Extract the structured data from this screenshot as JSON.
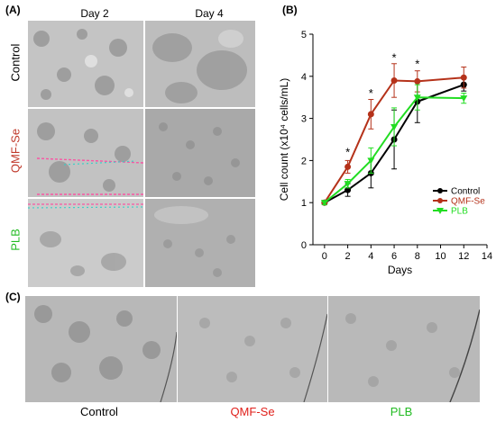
{
  "panels": {
    "A": {
      "label": "(A)",
      "columns": [
        "Day 2",
        "Day 4"
      ],
      "rows": [
        {
          "label": "Control",
          "color": "#000000"
        },
        {
          "label": "QMF-Se",
          "color": "#c0392b"
        },
        {
          "label": "PLB",
          "color": "#22bb22"
        }
      ]
    },
    "B": {
      "label": "(B)"
    },
    "C": {
      "label": "(C)",
      "captions": [
        {
          "label": "Control",
          "color": "#000000"
        },
        {
          "label": "QMF-Se",
          "color": "#e0201b"
        },
        {
          "label": "PLB",
          "color": "#22bb22"
        }
      ]
    }
  },
  "chart_data": {
    "type": "line",
    "xlabel": "Days",
    "ylabel": "Cell count (x10⁴ cells/mL)",
    "xlim": [
      -1,
      14
    ],
    "ylim": [
      0,
      5
    ],
    "xticks": [
      0,
      2,
      4,
      6,
      8,
      10,
      12,
      14
    ],
    "yticks": [
      0,
      1,
      2,
      3,
      4,
      5
    ],
    "legend_position": "right",
    "series": [
      {
        "name": "Control",
        "color": "#000000",
        "marker": "circle",
        "x": [
          0,
          2,
          4,
          6,
          8,
          12
        ],
        "y": [
          1.0,
          1.3,
          1.7,
          2.5,
          3.4,
          3.8
        ],
        "err": [
          0.05,
          0.15,
          0.35,
          0.7,
          0.5,
          0.15
        ]
      },
      {
        "name": "QMF-Se",
        "color": "#b5321a",
        "marker": "circle",
        "x": [
          0,
          2,
          4,
          6,
          8,
          12
        ],
        "y": [
          1.0,
          1.85,
          3.1,
          3.9,
          3.88,
          3.97
        ],
        "err": [
          0.05,
          0.15,
          0.35,
          0.4,
          0.25,
          0.25
        ]
      },
      {
        "name": "PLB",
        "color": "#22dd22",
        "marker": "triangle-down",
        "x": [
          0,
          2,
          4,
          6,
          8,
          12
        ],
        "y": [
          1.0,
          1.45,
          2.0,
          2.8,
          3.5,
          3.48
        ],
        "err": [
          0.05,
          0.1,
          0.3,
          0.45,
          0.3,
          0.12
        ]
      }
    ],
    "annotations": [
      {
        "text": "*",
        "x": 2,
        "y": 2.1
      },
      {
        "text": "*",
        "x": 4,
        "y": 3.5
      },
      {
        "text": "*",
        "x": 6,
        "y": 4.35
      },
      {
        "text": "*",
        "x": 8,
        "y": 4.2
      }
    ]
  }
}
